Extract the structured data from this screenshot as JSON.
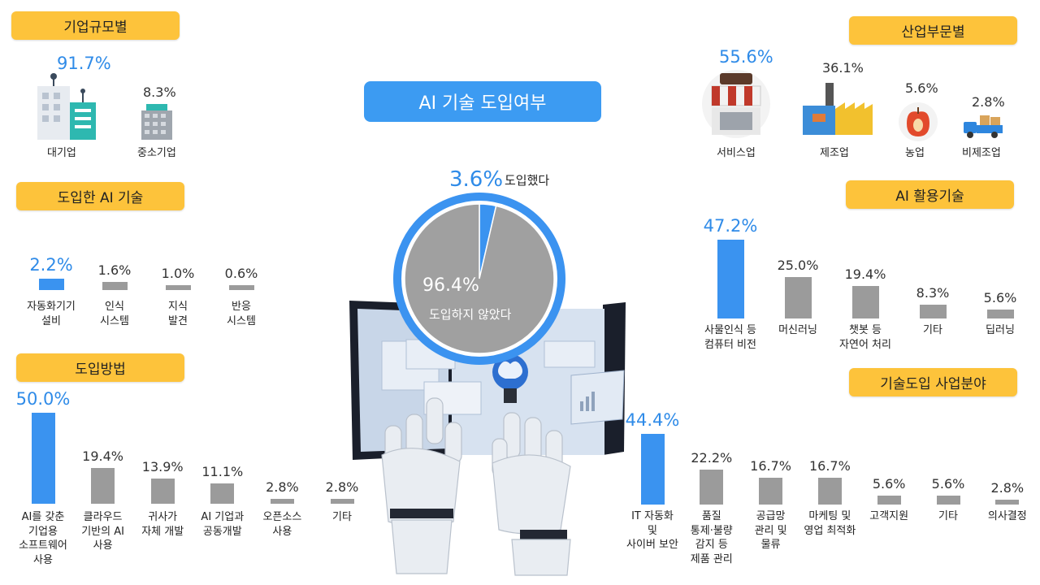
{
  "colors": {
    "accent_yellow": "#FDC33B",
    "highlight_blue": "#3A93F0",
    "bar_gray": "#9B9B9B"
  },
  "center": {
    "title": "AI 기술 도입여부",
    "adopted_pct": "3.6%",
    "adopted_label": "도입했다",
    "not_adopted_pct": "96.4%",
    "not_adopted_label": "도입하지 않았다"
  },
  "company_size": {
    "title": "기업규모별",
    "items": [
      {
        "label": "대기업",
        "pct": "91.7%",
        "icon": "large-company-building-icon"
      },
      {
        "label": "중소기업",
        "pct": "8.3%",
        "icon": "small-company-building-icon"
      }
    ]
  },
  "industry": {
    "title": "산업부문별",
    "items": [
      {
        "label": "서비스업",
        "pct": "55.6%",
        "icon": "storefront-coffee-icon"
      },
      {
        "label": "제조업",
        "pct": "36.1%",
        "icon": "factory-icon"
      },
      {
        "label": "농업",
        "pct": "5.6%",
        "icon": "apple-icon"
      },
      {
        "label": "비제조업",
        "pct": "2.8%",
        "icon": "delivery-truck-icon"
      }
    ]
  },
  "chart_data": [
    {
      "type": "pie",
      "title": "AI 기술 도입여부",
      "categories": [
        "도입했다",
        "도입하지 않았다"
      ],
      "values": [
        3.6,
        96.4
      ]
    },
    {
      "type": "bar",
      "title": "기업규모별",
      "categories": [
        "대기업",
        "중소기업"
      ],
      "values": [
        91.7,
        8.3
      ]
    },
    {
      "type": "bar",
      "title": "산업부문별",
      "categories": [
        "서비스업",
        "제조업",
        "농업",
        "비제조업"
      ],
      "values": [
        55.6,
        36.1,
        5.6,
        2.8
      ]
    },
    {
      "type": "bar",
      "title": "도입한 AI 기술",
      "categories": [
        "자동화기기\n설비",
        "인식\n시스템",
        "지식\n발견",
        "반응\n시스템"
      ],
      "values": [
        2.2,
        1.6,
        1.0,
        0.6
      ],
      "labels": [
        "2.2%",
        "1.6%",
        "1.0%",
        "0.6%"
      ],
      "highlight": 0
    },
    {
      "type": "bar",
      "title": "도입방법",
      "categories": [
        "AI를 갖춘\n기업용\n소프트웨어\n사용",
        "클라우드\n기반의 AI\n사용",
        "귀사가\n자체 개발",
        "AI 기업과\n공동개발",
        "오픈소스\n사용",
        "기타"
      ],
      "values": [
        50.0,
        19.4,
        13.9,
        11.1,
        2.8,
        2.8
      ],
      "labels": [
        "50.0%",
        "19.4%",
        "13.9%",
        "11.1%",
        "2.8%",
        "2.8%"
      ],
      "highlight": 0
    },
    {
      "type": "bar",
      "title": "AI 활용기술",
      "categories": [
        "사물인식 등\n컴퓨터 비전",
        "머신러닝",
        "챗봇 등\n자연어 처리",
        "기타",
        "딥러닝"
      ],
      "values": [
        47.2,
        25.0,
        19.4,
        8.3,
        5.6
      ],
      "labels": [
        "47.2%",
        "25.0%",
        "19.4%",
        "8.3%",
        "5.6%"
      ],
      "highlight": 0
    },
    {
      "type": "bar",
      "title": "기술도입 사업분야",
      "categories": [
        "IT 자동화\n및\n사이버 보안",
        "품질\n통제·불량\n감지 등\n제품 관리",
        "공급망\n관리 및\n물류",
        "마케팅 및\n영업 최적화",
        "고객지원",
        "기타",
        "의사결정"
      ],
      "values": [
        44.4,
        22.2,
        16.7,
        16.7,
        5.6,
        5.6,
        2.8
      ],
      "labels": [
        "44.4%",
        "22.2%",
        "16.7%",
        "16.7%",
        "5.6%",
        "5.6%",
        "2.8%"
      ],
      "highlight": 0
    }
  ]
}
